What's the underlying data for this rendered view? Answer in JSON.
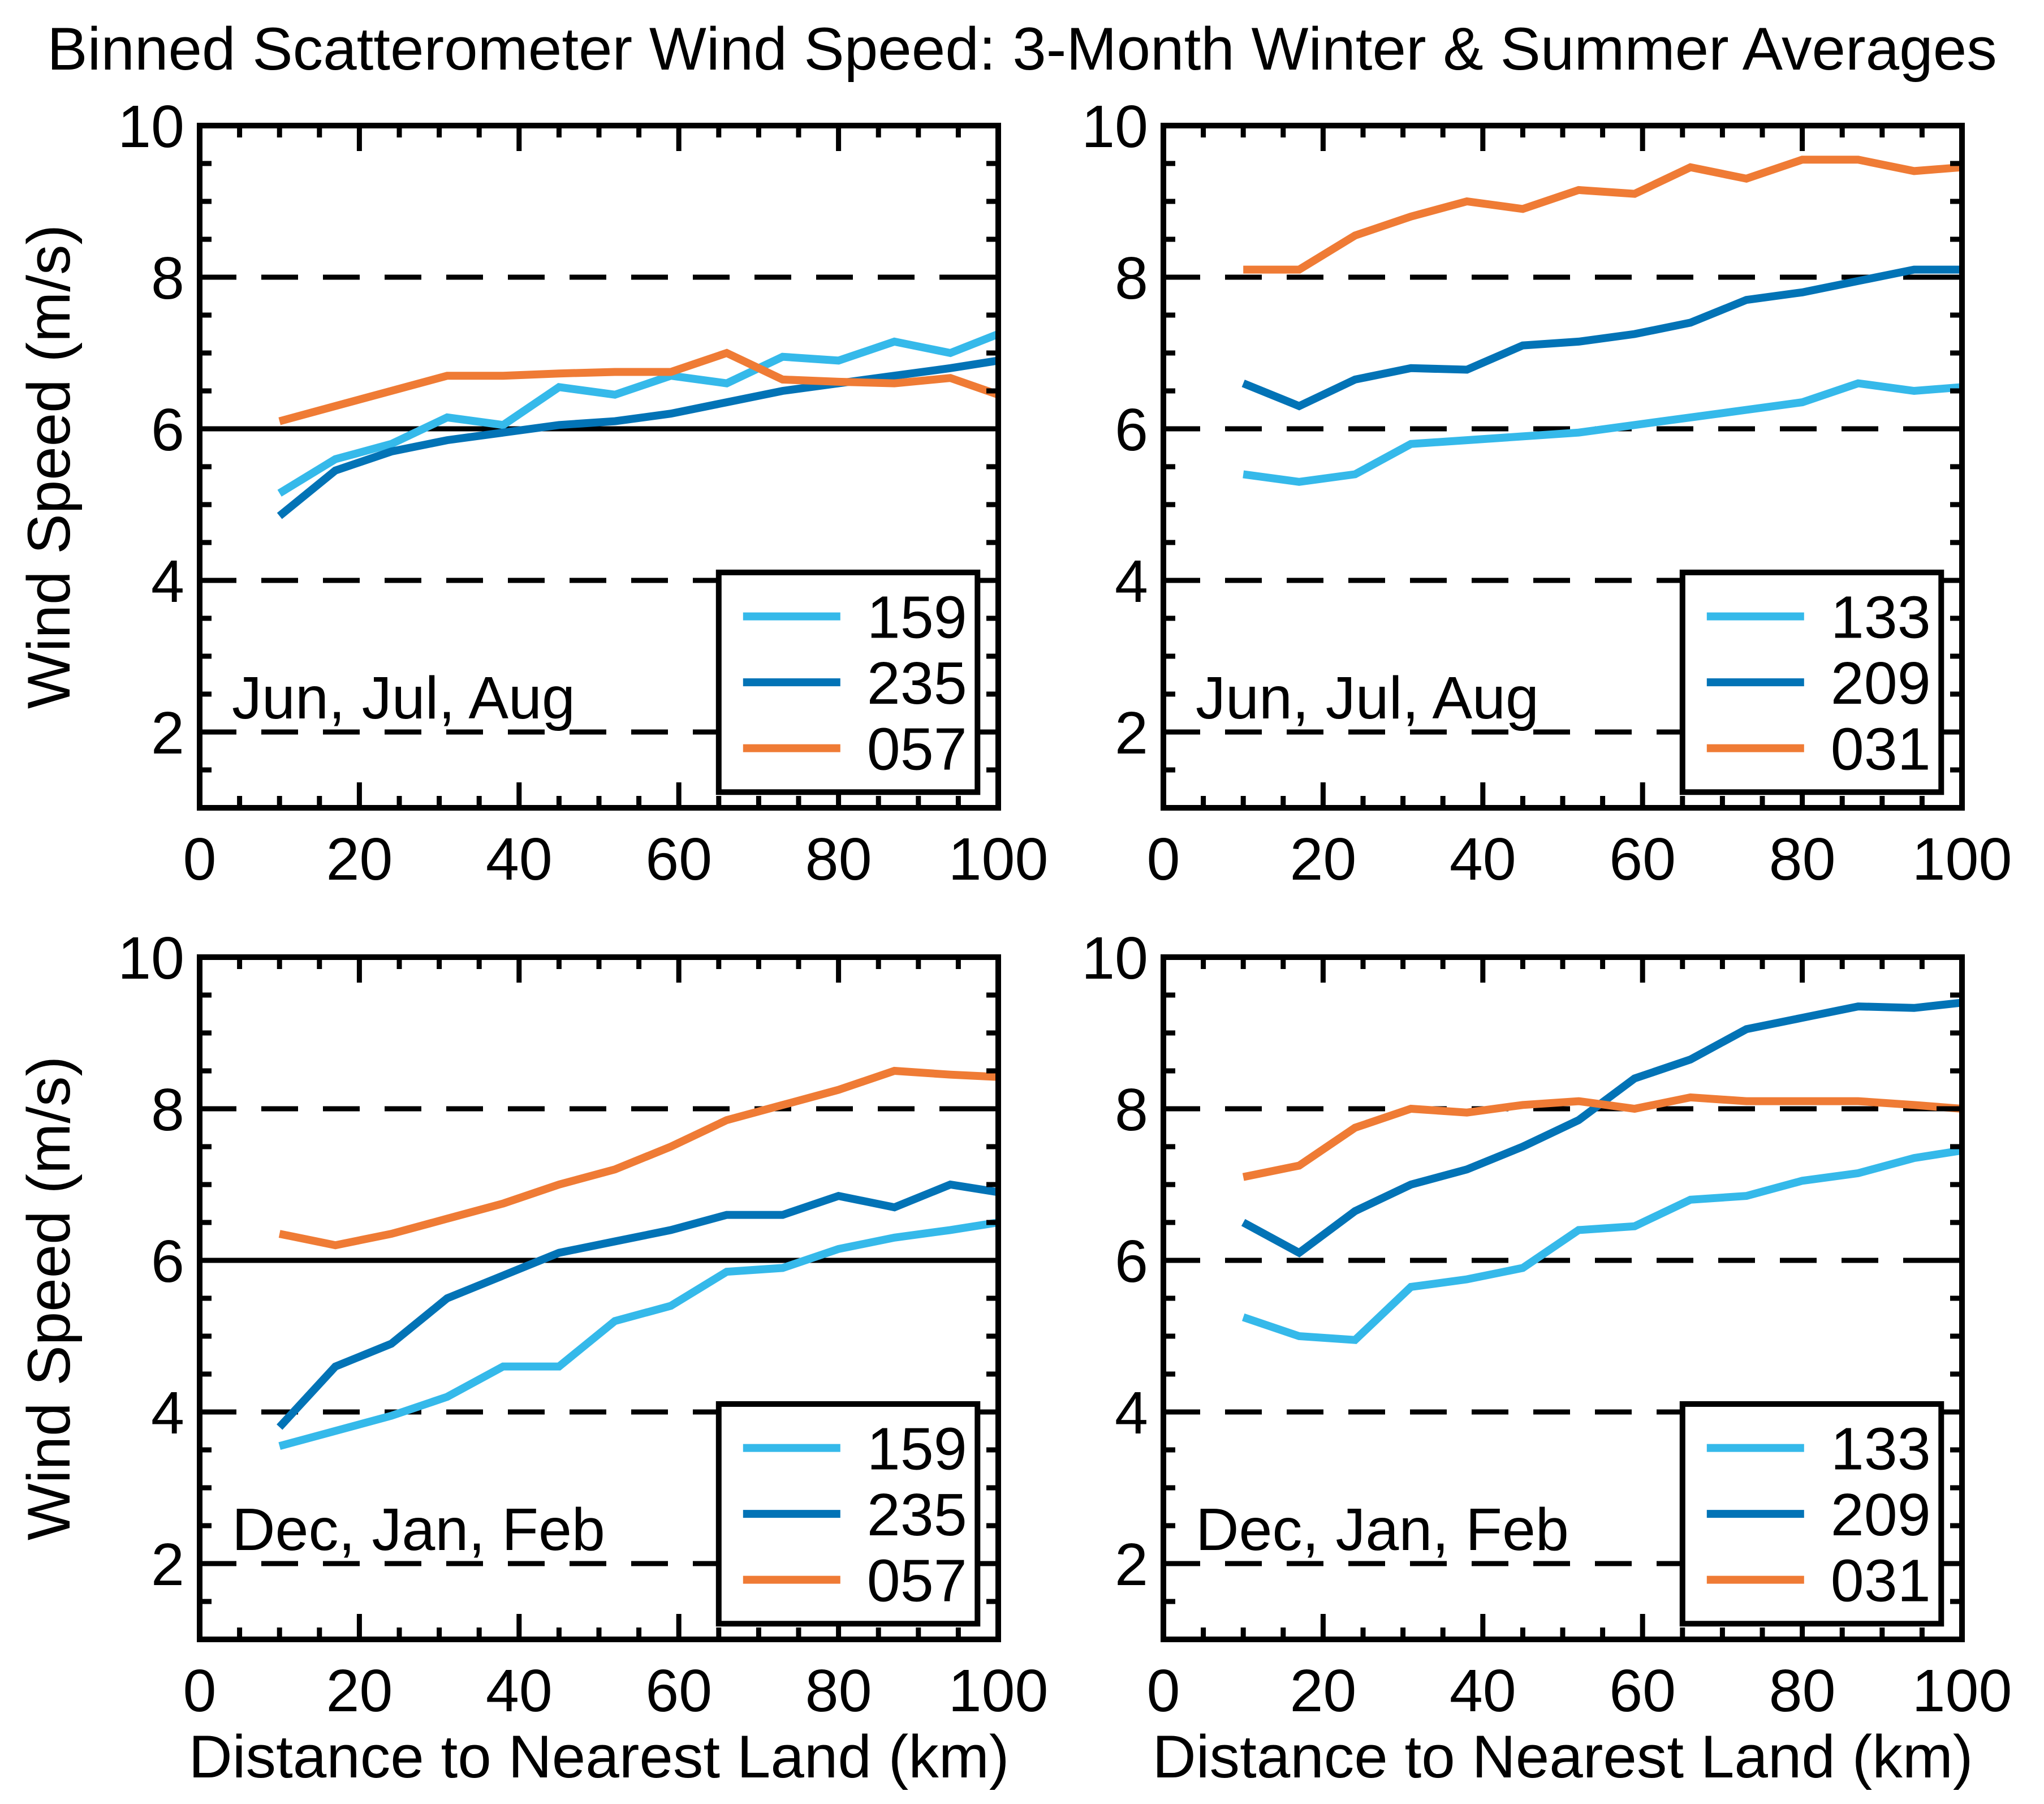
{
  "title": "Binned Scatterometer Wind Speed: 3-Month Winter & Summer Averages",
  "axes": {
    "ylabel": "Wind Speed (m/s)",
    "xlabel": "Distance to Nearest Land (km)"
  },
  "colors": {
    "light_blue": "#35B9EA",
    "dark_blue": "#0273B6",
    "orange": "#EF7B35",
    "axis": "#000000",
    "background": "#FFFFFF"
  },
  "chart_data": [
    {
      "type": "line",
      "id": "top-left",
      "season_label": "Jun, Jul, Aug",
      "xlim": [
        0,
        100
      ],
      "ylim": [
        1,
        10
      ],
      "xticks": [
        0,
        20,
        40,
        60,
        80,
        100
      ],
      "yticks": [
        2,
        4,
        6,
        8,
        10
      ],
      "x_minor_step": 5,
      "y_minor_step": 0.5,
      "dashed_gridlines": [
        2,
        4,
        8
      ],
      "solid_gridlines": [
        6
      ],
      "legend": [
        "159",
        "235",
        "057"
      ],
      "x": [
        10,
        17,
        24,
        31,
        38,
        45,
        52,
        59,
        66,
        73,
        80,
        87,
        94,
        100
      ],
      "series": [
        {
          "name": "159",
          "color": "light_blue",
          "values": [
            5.15,
            5.6,
            5.8,
            6.15,
            6.05,
            6.55,
            6.45,
            6.7,
            6.6,
            6.95,
            6.9,
            7.15,
            7.0,
            7.25
          ]
        },
        {
          "name": "235",
          "color": "dark_blue",
          "values": [
            4.85,
            5.45,
            5.7,
            5.85,
            5.95,
            6.05,
            6.1,
            6.2,
            6.35,
            6.5,
            6.6,
            6.7,
            6.8,
            6.9
          ]
        },
        {
          "name": "057",
          "color": "orange",
          "values": [
            6.1,
            6.3,
            6.5,
            6.7,
            6.7,
            6.73,
            6.75,
            6.75,
            7.0,
            6.65,
            6.62,
            6.6,
            6.67,
            6.45
          ]
        }
      ]
    },
    {
      "type": "line",
      "id": "top-right",
      "season_label": "Jun, Jul, Aug",
      "xlim": [
        0,
        100
      ],
      "ylim": [
        1,
        10
      ],
      "xticks": [
        0,
        20,
        40,
        60,
        80,
        100
      ],
      "yticks": [
        2,
        4,
        6,
        8,
        10
      ],
      "x_minor_step": 5,
      "y_minor_step": 0.5,
      "dashed_gridlines": [
        2,
        4,
        6,
        8
      ],
      "solid_gridlines": [],
      "legend": [
        "133",
        "209",
        "031"
      ],
      "x": [
        10,
        17,
        24,
        31,
        38,
        45,
        52,
        59,
        66,
        73,
        80,
        87,
        94,
        100
      ],
      "series": [
        {
          "name": "133",
          "color": "light_blue",
          "values": [
            5.4,
            5.3,
            5.4,
            5.8,
            5.85,
            5.9,
            5.95,
            6.05,
            6.15,
            6.25,
            6.35,
            6.6,
            6.5,
            6.55
          ]
        },
        {
          "name": "209",
          "color": "dark_blue",
          "values": [
            6.6,
            6.3,
            6.65,
            6.8,
            6.78,
            7.1,
            7.15,
            7.25,
            7.4,
            7.7,
            7.8,
            7.95,
            8.1,
            8.1
          ]
        },
        {
          "name": "031",
          "color": "orange",
          "values": [
            8.1,
            8.1,
            8.55,
            8.8,
            9.0,
            8.9,
            9.15,
            9.1,
            9.45,
            9.3,
            9.55,
            9.55,
            9.4,
            9.45
          ]
        }
      ]
    },
    {
      "type": "line",
      "id": "bottom-left",
      "season_label": "Dec, Jan, Feb",
      "xlim": [
        0,
        100
      ],
      "ylim": [
        1,
        10
      ],
      "xticks": [
        0,
        20,
        40,
        60,
        80,
        100
      ],
      "yticks": [
        2,
        4,
        6,
        8,
        10
      ],
      "x_minor_step": 5,
      "y_minor_step": 0.5,
      "dashed_gridlines": [
        2,
        4,
        8
      ],
      "solid_gridlines": [
        6
      ],
      "legend": [
        "159",
        "235",
        "057"
      ],
      "x": [
        10,
        17,
        24,
        31,
        38,
        45,
        52,
        59,
        66,
        73,
        80,
        87,
        94,
        100
      ],
      "series": [
        {
          "name": "159",
          "color": "light_blue",
          "values": [
            3.55,
            3.75,
            3.95,
            4.2,
            4.6,
            4.6,
            5.2,
            5.4,
            5.85,
            5.9,
            6.15,
            6.3,
            6.4,
            6.5
          ]
        },
        {
          "name": "235",
          "color": "dark_blue",
          "values": [
            3.8,
            4.6,
            4.9,
            5.5,
            5.8,
            6.1,
            6.25,
            6.4,
            6.6,
            6.6,
            6.85,
            6.7,
            7.0,
            6.9
          ]
        },
        {
          "name": "057",
          "color": "orange",
          "values": [
            6.35,
            6.2,
            6.35,
            6.55,
            6.75,
            7.0,
            7.2,
            7.5,
            7.85,
            8.05,
            8.25,
            8.5,
            8.45,
            8.42
          ]
        }
      ]
    },
    {
      "type": "line",
      "id": "bottom-right",
      "season_label": "Dec, Jan, Feb",
      "xlim": [
        0,
        100
      ],
      "ylim": [
        1,
        10
      ],
      "xticks": [
        0,
        20,
        40,
        60,
        80,
        100
      ],
      "yticks": [
        2,
        4,
        6,
        8,
        10
      ],
      "x_minor_step": 5,
      "y_minor_step": 0.5,
      "dashed_gridlines": [
        2,
        4,
        6,
        8
      ],
      "solid_gridlines": [],
      "legend": [
        "133",
        "209",
        "031"
      ],
      "x": [
        10,
        17,
        24,
        31,
        38,
        45,
        52,
        59,
        66,
        73,
        80,
        87,
        94,
        100
      ],
      "series": [
        {
          "name": "133",
          "color": "light_blue",
          "values": [
            5.25,
            5.0,
            4.95,
            5.65,
            5.75,
            5.9,
            6.4,
            6.45,
            6.8,
            6.85,
            7.05,
            7.15,
            7.35,
            7.45
          ]
        },
        {
          "name": "209",
          "color": "dark_blue",
          "values": [
            6.5,
            6.1,
            6.65,
            7.0,
            7.2,
            7.5,
            7.85,
            8.4,
            8.65,
            9.05,
            9.2,
            9.35,
            9.33,
            9.4
          ]
        },
        {
          "name": "031",
          "color": "orange",
          "values": [
            7.1,
            7.25,
            7.75,
            8.0,
            7.95,
            8.05,
            8.1,
            8.0,
            8.15,
            8.1,
            8.1,
            8.1,
            8.05,
            8.0
          ]
        }
      ]
    }
  ]
}
